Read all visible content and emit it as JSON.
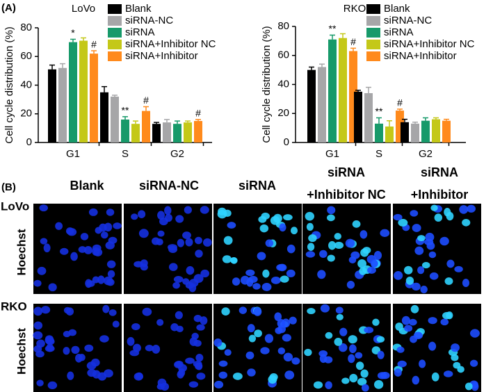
{
  "panel_a_label": "(A)",
  "chart_data": [
    {
      "type": "bar",
      "title": "LoVo",
      "y_label": "Cell cycle distribution (%)",
      "categories": [
        "G1",
        "S",
        "G2"
      ],
      "ylim": [
        0,
        80
      ],
      "yticks": [
        0,
        20,
        40,
        60,
        80
      ],
      "series": [
        {
          "name": "Blank",
          "color": "#000000",
          "values": [
            51,
            35,
            13
          ],
          "errors": [
            3,
            4,
            1
          ],
          "annotations": [
            null,
            null,
            null
          ]
        },
        {
          "name": "siRNA-NC",
          "color": "#a6a6a8",
          "values": [
            52,
            32,
            14
          ],
          "errors": [
            3,
            1,
            2
          ],
          "annotations": [
            null,
            null,
            null
          ]
        },
        {
          "name": "siRNA",
          "color": "#179a6a",
          "values": [
            70,
            16,
            13
          ],
          "errors": [
            2,
            2,
            2
          ],
          "annotations": [
            "*",
            "**",
            null
          ]
        },
        {
          "name": "siRNA+Inhibitor NC",
          "color": "#c4c818",
          "values": [
            71,
            13,
            14
          ],
          "errors": [
            2,
            2,
            1
          ],
          "annotations": [
            null,
            null,
            null
          ]
        },
        {
          "name": "siRNA+Inhibitor",
          "color": "#ff8a1c",
          "values": [
            62,
            22,
            15
          ],
          "errors": [
            2,
            3,
            1
          ],
          "annotations": [
            "#",
            "#",
            "#"
          ]
        }
      ]
    },
    {
      "type": "bar",
      "title": "RKO",
      "y_label": "Cell cycle distribution (%)",
      "categories": [
        "G1",
        "S",
        "G2"
      ],
      "ylim": [
        0,
        80
      ],
      "yticks": [
        0,
        20,
        40,
        60,
        80
      ],
      "series": [
        {
          "name": "Blank",
          "color": "#000000",
          "values": [
            50,
            35,
            14
          ],
          "errors": [
            2,
            1,
            2
          ],
          "annotations": [
            null,
            null,
            null
          ]
        },
        {
          "name": "siRNA-NC",
          "color": "#a6a6a8",
          "values": [
            52,
            34,
            13
          ],
          "errors": [
            2,
            4,
            1
          ],
          "annotations": [
            null,
            null,
            null
          ]
        },
        {
          "name": "siRNA",
          "color": "#179a6a",
          "values": [
            71,
            13,
            15
          ],
          "errors": [
            3,
            4,
            2
          ],
          "annotations": [
            "**",
            "**",
            null
          ]
        },
        {
          "name": "siRNA+Inhibitor NC",
          "color": "#c4c818",
          "values": [
            72,
            11,
            16
          ],
          "errors": [
            3,
            4,
            1
          ],
          "annotations": [
            null,
            null,
            null
          ]
        },
        {
          "name": "siRNA+Inhibitor",
          "color": "#ff8a1c",
          "values": [
            63,
            22,
            15
          ],
          "errors": [
            2,
            1,
            1
          ],
          "annotations": [
            "#",
            "#",
            null
          ]
        }
      ]
    }
  ],
  "image_panel": {
    "label": "(B)",
    "columns": [
      [
        "Blank"
      ],
      [
        "siRNA-NC"
      ],
      [
        "siRNA"
      ],
      [
        "siRNA",
        "+Inhibitor NC"
      ],
      [
        "siRNA",
        "+Inhibitor"
      ]
    ],
    "rows": [
      {
        "cell_line": "LoVo",
        "stain": "Hoechst"
      },
      {
        "cell_line": "RKO",
        "stain": "Hoechst"
      }
    ]
  }
}
